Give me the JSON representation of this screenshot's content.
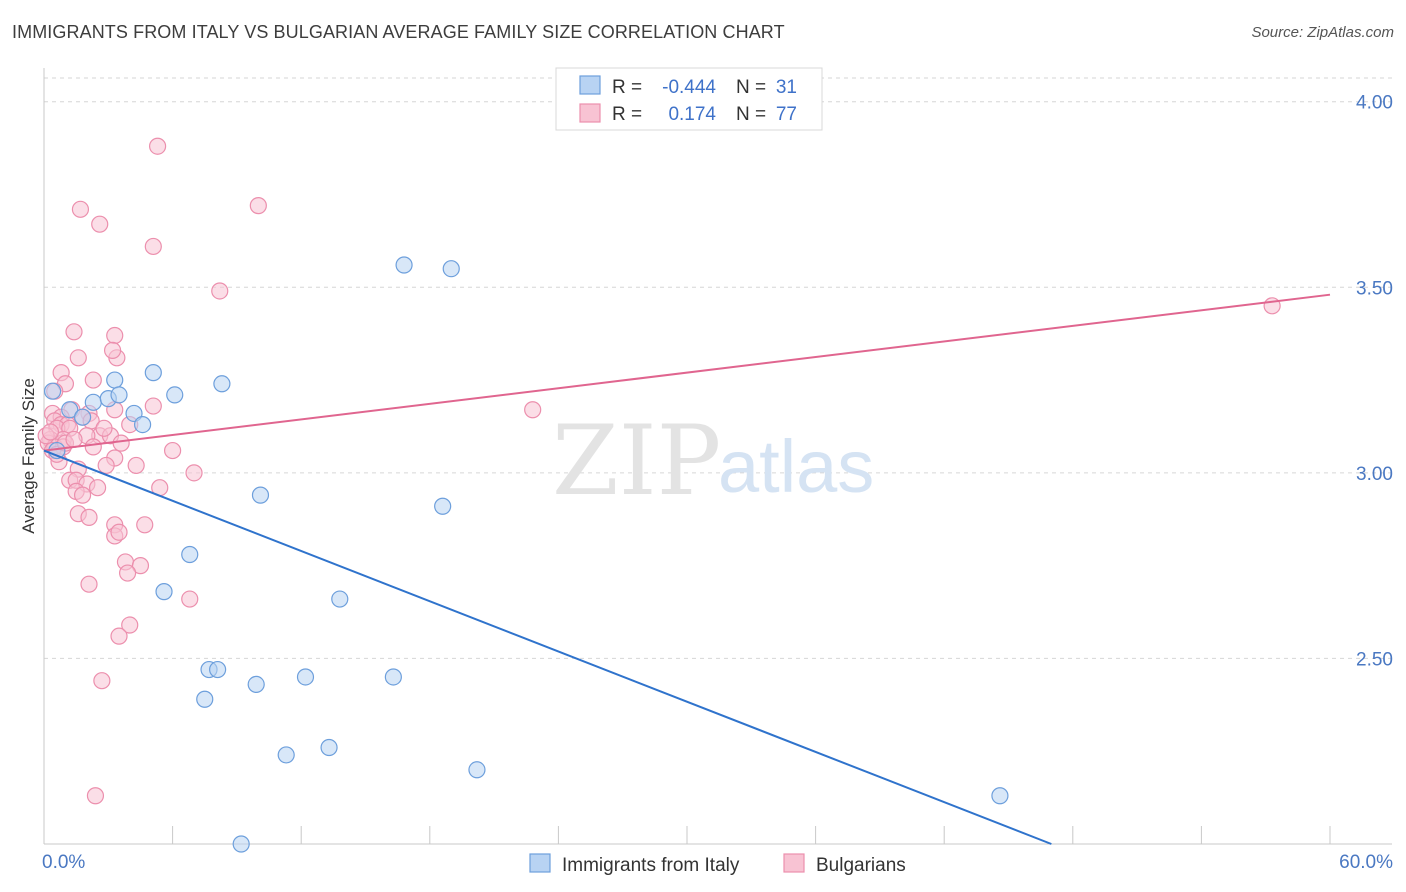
{
  "title": "IMMIGRANTS FROM ITALY VS BULGARIAN AVERAGE FAMILY SIZE CORRELATION CHART",
  "source": "Source: ZipAtlas.com",
  "watermark": {
    "zip": "ZIP",
    "atlas": "atlas"
  },
  "stats": {
    "r_label": "R =",
    "n_label": "N =",
    "italy": {
      "r": "-0.444",
      "n": "31"
    },
    "bulgarians": {
      "r": "0.174",
      "n": "77"
    }
  },
  "colors": {
    "italy_fill": "#b8d3f3",
    "italy_stroke": "#6d9fdc",
    "italy_line": "#2f73cc",
    "bulg_fill": "#f8c3d3",
    "bulg_stroke": "#ec8fad",
    "bulg_line": "#e0658f",
    "grid": "#d6d6d6",
    "axis_text": "#4a78c2"
  },
  "chart_data": {
    "type": "scatter",
    "xlabel": "",
    "ylabel": "Average Family Size",
    "x_tick_labels": [
      "0.0%",
      "60.0%"
    ],
    "xlim": [
      0,
      60
    ],
    "ylim": [
      2.0,
      4.08
    ],
    "y_ticks": [
      2.5,
      3.0,
      3.5,
      4.0
    ],
    "y_tick_labels": [
      "2.50",
      "3.00",
      "3.50",
      "4.00"
    ],
    "grid": true,
    "legend_position": "bottom-center",
    "series": [
      {
        "name": "Immigrants from Italy",
        "points": [
          [
            0.4,
            3.22
          ],
          [
            1.2,
            3.17
          ],
          [
            1.8,
            3.15
          ],
          [
            2.3,
            3.19
          ],
          [
            3.0,
            3.2
          ],
          [
            3.3,
            3.25
          ],
          [
            3.5,
            3.21
          ],
          [
            4.2,
            3.16
          ],
          [
            4.6,
            3.13
          ],
          [
            5.1,
            3.27
          ],
          [
            6.1,
            3.21
          ],
          [
            8.3,
            3.24
          ],
          [
            6.8,
            2.78
          ],
          [
            5.6,
            2.68
          ],
          [
            10.1,
            2.94
          ],
          [
            13.8,
            2.66
          ],
          [
            18.6,
            2.91
          ],
          [
            7.7,
            2.47
          ],
          [
            8.1,
            2.47
          ],
          [
            7.5,
            2.39
          ],
          [
            9.9,
            2.43
          ],
          [
            12.2,
            2.45
          ],
          [
            16.3,
            2.45
          ],
          [
            11.3,
            2.24
          ],
          [
            13.3,
            2.26
          ],
          [
            20.2,
            2.2
          ],
          [
            9.2,
            2.0
          ],
          [
            16.8,
            3.56
          ],
          [
            19.0,
            3.55
          ],
          [
            44.6,
            2.13
          ],
          [
            0.6,
            3.06
          ]
        ],
        "trend": {
          "x": [
            0,
            47
          ],
          "y": [
            3.06,
            2.0
          ]
        }
      },
      {
        "name": "Bulgarians",
        "points": [
          [
            5.3,
            3.88
          ],
          [
            1.7,
            3.71
          ],
          [
            2.6,
            3.67
          ],
          [
            5.1,
            3.61
          ],
          [
            10.0,
            3.72
          ],
          [
            8.2,
            3.49
          ],
          [
            1.4,
            3.38
          ],
          [
            3.3,
            3.37
          ],
          [
            1.6,
            3.31
          ],
          [
            3.4,
            3.31
          ],
          [
            3.2,
            3.33
          ],
          [
            0.8,
            3.27
          ],
          [
            2.3,
            3.25
          ],
          [
            1.0,
            3.24
          ],
          [
            0.5,
            3.22
          ],
          [
            1.3,
            3.17
          ],
          [
            5.1,
            3.18
          ],
          [
            3.3,
            3.17
          ],
          [
            0.4,
            3.16
          ],
          [
            2.1,
            3.16
          ],
          [
            0.8,
            3.15
          ],
          [
            1.8,
            3.15
          ],
          [
            0.5,
            3.14
          ],
          [
            0.8,
            3.13
          ],
          [
            1.1,
            3.13
          ],
          [
            2.2,
            3.14
          ],
          [
            4.0,
            3.13
          ],
          [
            0.6,
            3.12
          ],
          [
            1.2,
            3.12
          ],
          [
            2.6,
            3.1
          ],
          [
            3.1,
            3.1
          ],
          [
            0.3,
            3.09
          ],
          [
            0.9,
            3.09
          ],
          [
            2.0,
            3.1
          ],
          [
            0.2,
            3.08
          ],
          [
            0.5,
            3.07
          ],
          [
            0.9,
            3.07
          ],
          [
            2.3,
            3.07
          ],
          [
            0.4,
            3.06
          ],
          [
            6.0,
            3.06
          ],
          [
            3.3,
            3.04
          ],
          [
            0.7,
            3.03
          ],
          [
            1.6,
            3.01
          ],
          [
            2.9,
            3.02
          ],
          [
            1.2,
            2.98
          ],
          [
            1.5,
            2.98
          ],
          [
            2.0,
            2.97
          ],
          [
            2.5,
            2.96
          ],
          [
            5.4,
            2.96
          ],
          [
            1.5,
            2.95
          ],
          [
            1.8,
            2.94
          ],
          [
            1.6,
            2.89
          ],
          [
            2.1,
            2.88
          ],
          [
            3.3,
            2.86
          ],
          [
            4.7,
            2.86
          ],
          [
            3.3,
            2.83
          ],
          [
            3.5,
            2.84
          ],
          [
            3.8,
            2.76
          ],
          [
            4.5,
            2.75
          ],
          [
            3.9,
            2.73
          ],
          [
            2.1,
            2.7
          ],
          [
            6.8,
            2.66
          ],
          [
            4.0,
            2.59
          ],
          [
            3.5,
            2.56
          ],
          [
            2.7,
            2.44
          ],
          [
            2.4,
            2.13
          ],
          [
            22.8,
            3.17
          ],
          [
            57.3,
            3.45
          ],
          [
            0.1,
            3.1
          ],
          [
            0.3,
            3.11
          ],
          [
            0.6,
            3.05
          ],
          [
            1.0,
            3.08
          ],
          [
            1.4,
            3.09
          ],
          [
            2.8,
            3.12
          ],
          [
            3.6,
            3.08
          ],
          [
            4.3,
            3.02
          ],
          [
            7.0,
            3.0
          ]
        ],
        "trend": {
          "x": [
            0,
            60
          ],
          "y": [
            3.06,
            3.48
          ]
        }
      }
    ]
  }
}
